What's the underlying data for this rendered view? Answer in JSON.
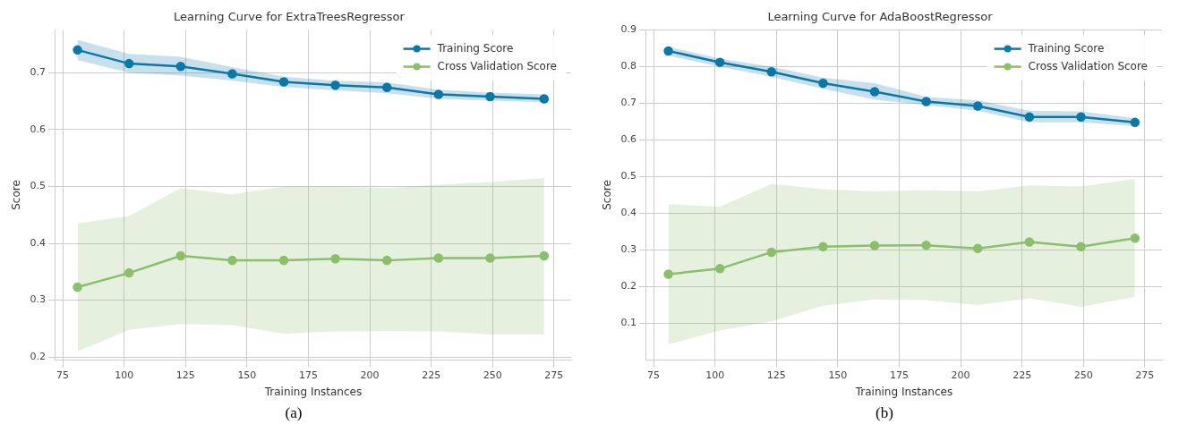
{
  "chart_data": [
    {
      "type": "line",
      "title": "Learning Curve for ExtraTreesRegressor",
      "xlabel": "Training Instances",
      "ylabel": "Score",
      "annotations": [
        "(a)"
      ],
      "x": [
        81,
        102,
        123,
        144,
        165,
        186,
        207,
        228,
        249,
        271
      ],
      "series": [
        {
          "name": "Training Score",
          "color": "#0b78a8",
          "values": [
            0.74,
            0.716,
            0.711,
            0.698,
            0.684,
            0.678,
            0.674,
            0.662,
            0.658,
            0.654
          ],
          "lower": [
            0.722,
            0.7,
            0.695,
            0.686,
            0.675,
            0.669,
            0.664,
            0.654,
            0.651,
            0.648
          ],
          "upper": [
            0.758,
            0.733,
            0.728,
            0.71,
            0.693,
            0.686,
            0.683,
            0.67,
            0.665,
            0.662
          ]
        },
        {
          "name": "Cross Validation Score",
          "color": "#8cbf6c",
          "values": [
            0.323,
            0.348,
            0.378,
            0.37,
            0.37,
            0.373,
            0.37,
            0.374,
            0.374,
            0.378
          ],
          "lower": [
            0.21,
            0.248,
            0.258,
            0.256,
            0.241,
            0.245,
            0.246,
            0.245,
            0.24,
            0.24
          ],
          "upper": [
            0.435,
            0.448,
            0.497,
            0.486,
            0.5,
            0.5,
            0.497,
            0.503,
            0.508,
            0.515
          ]
        }
      ],
      "xlim": [
        72,
        282
      ],
      "xticks": [
        75,
        100,
        125,
        150,
        175,
        200,
        225,
        250,
        275
      ],
      "ylim": [
        0.195,
        0.775
      ],
      "yticks": [
        0.2,
        0.3,
        0.4,
        0.5,
        0.6,
        0.7
      ],
      "grid": true,
      "legend": "top right",
      "marker": "circle"
    },
    {
      "type": "line",
      "title": "Learning Curve for AdaBoostRegressor",
      "xlabel": "Training Instances",
      "ylabel": "Score",
      "annotations": [
        "(b)"
      ],
      "x": [
        81,
        102,
        123,
        144,
        165,
        186,
        207,
        228,
        249,
        271
      ],
      "series": [
        {
          "name": "Training Score",
          "color": "#0b78a8",
          "values": [
            0.843,
            0.812,
            0.786,
            0.755,
            0.732,
            0.705,
            0.693,
            0.663,
            0.663,
            0.648
          ],
          "lower": [
            0.83,
            0.8,
            0.772,
            0.74,
            0.71,
            0.695,
            0.68,
            0.648,
            0.648,
            0.638
          ],
          "upper": [
            0.855,
            0.822,
            0.8,
            0.77,
            0.755,
            0.718,
            0.708,
            0.68,
            0.678,
            0.66
          ]
        },
        {
          "name": "Cross Validation Score",
          "color": "#8cbf6c",
          "values": [
            0.234,
            0.249,
            0.294,
            0.309,
            0.312,
            0.313,
            0.304,
            0.322,
            0.309,
            0.332
          ],
          "lower": [
            0.043,
            0.08,
            0.105,
            0.148,
            0.165,
            0.163,
            0.15,
            0.168,
            0.145,
            0.172
          ],
          "upper": [
            0.425,
            0.418,
            0.48,
            0.466,
            0.46,
            0.463,
            0.46,
            0.476,
            0.473,
            0.494
          ]
        }
      ],
      "xlim": [
        72,
        282
      ],
      "xticks": [
        75,
        100,
        125,
        150,
        175,
        200,
        225,
        250,
        275
      ],
      "ylim": [
        0,
        0.9
      ],
      "yticks": [
        0.1,
        0.2,
        0.3,
        0.4,
        0.5,
        0.6,
        0.7,
        0.8,
        0.9
      ],
      "grid": true,
      "legend": "top right",
      "marker": "circle"
    }
  ]
}
